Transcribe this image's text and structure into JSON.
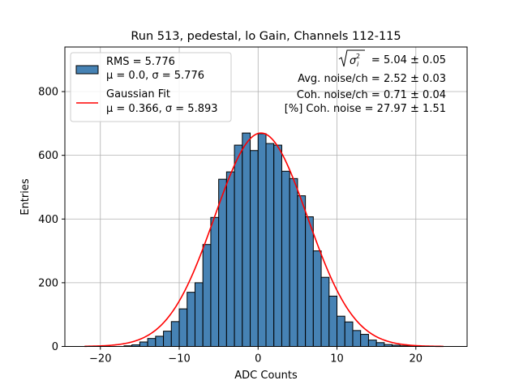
{
  "chart_data": {
    "type": "bar",
    "title": "Run 513, pedestal, lo Gain, Channels 112-115",
    "xlabel": "ADC Counts",
    "ylabel": "Entries",
    "xlim": [
      -24.5,
      26.5
    ],
    "ylim": [
      0,
      940
    ],
    "xticks": [
      -20,
      -10,
      0,
      10,
      20
    ],
    "xtick_labels": [
      "−20",
      "−10",
      "0",
      "10",
      "20"
    ],
    "yticks": [
      0,
      200,
      400,
      600,
      800
    ],
    "grid": true,
    "bar_color": "#4682b4",
    "fit_color": "#ff0000",
    "histogram": {
      "bin_width": 1,
      "bin_starts": [
        -17,
        -16,
        -15,
        -14,
        -13,
        -12,
        -11,
        -10,
        -9,
        -8,
        -7,
        -6,
        -5,
        -4,
        -3,
        -2,
        -1,
        0,
        1,
        2,
        3,
        4,
        5,
        6,
        7,
        8,
        9,
        10,
        11,
        12,
        13,
        14,
        15,
        16,
        17,
        18,
        19,
        20
      ],
      "values": [
        2,
        5,
        14,
        25,
        32,
        48,
        78,
        118,
        170,
        200,
        320,
        405,
        525,
        548,
        632,
        670,
        615,
        668,
        637,
        632,
        550,
        527,
        473,
        407,
        300,
        217,
        158,
        95,
        77,
        50,
        38,
        20,
        12,
        6,
        4,
        2,
        1,
        0
      ]
    },
    "gaussian_fit": {
      "mu": 0.366,
      "sigma": 5.893,
      "amplitude": 670,
      "x_range": [
        -22,
        23.5
      ]
    },
    "legend": {
      "placement": "top-left",
      "entries": [
        {
          "kind": "patch",
          "lines": [
            "RMS = 5.776",
            "μ = 0.0, σ = 5.776"
          ]
        },
        {
          "kind": "line",
          "lines": [
            "Gaussian Fit",
            "μ = 0.366, σ = 5.893"
          ]
        }
      ]
    },
    "annotations": {
      "sqrt_value": "= 5.04 ± 0.05",
      "lines": [
        "Avg. noise/ch = 2.52 ± 0.03",
        "Coh. noise/ch = 0.71 ± 0.04",
        "[%] Coh. noise = 27.97 ± 1.51"
      ]
    }
  }
}
